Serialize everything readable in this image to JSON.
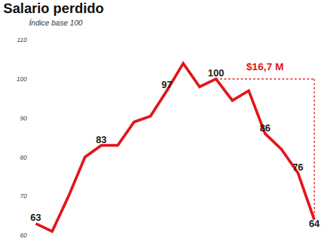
{
  "chart_data": {
    "type": "line",
    "title": "Salario perdido",
    "subtitle": "Índice base 100",
    "categories": [
      null,
      null,
      null,
      null,
      null,
      null,
      null,
      null,
      null,
      null,
      null,
      null,
      null,
      null,
      null,
      null,
      null,
      null
    ],
    "values": [
      63,
      61,
      70,
      80,
      83,
      83,
      89,
      90.5,
      97,
      104,
      98,
      100,
      94.5,
      97,
      86,
      82,
      76,
      64
    ],
    "value_labels": [
      "63",
      null,
      null,
      null,
      "83",
      null,
      null,
      null,
      "97",
      null,
      null,
      "100",
      null,
      null,
      "86",
      null,
      "76",
      "64"
    ],
    "color": "#e3161b",
    "ylim": [
      60,
      110
    ],
    "yticks": [
      60,
      70,
      80,
      90,
      100,
      110
    ],
    "grid": false,
    "tick_labels": "y",
    "data_labels": true,
    "annotations": [
      {
        "text": "$16,7 M",
        "from": 100,
        "to": 64,
        "color": "#e3161b",
        "line_style": "dot"
      }
    ]
  }
}
